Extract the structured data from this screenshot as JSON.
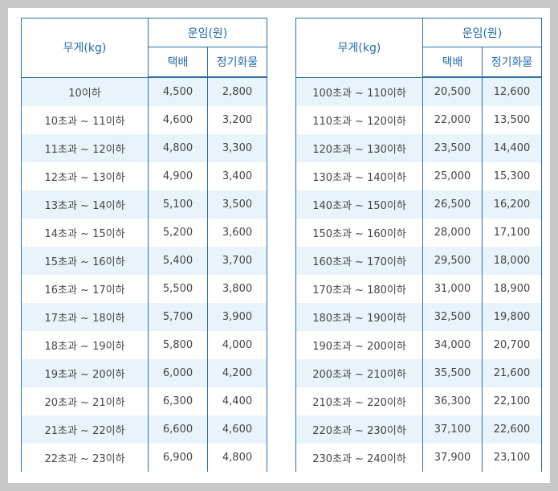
{
  "header": {
    "weight": "무게(kg)",
    "fare": "운임(원)",
    "courier": "택배",
    "regular": "정기화물"
  },
  "left_rows": [
    {
      "weight": "10이하",
      "courier": "4,500",
      "regular": "2,800"
    },
    {
      "weight": "10초과 ~ 11이하",
      "courier": "4,600",
      "regular": "3,200"
    },
    {
      "weight": "11초과 ~ 12이하",
      "courier": "4,800",
      "regular": "3,300"
    },
    {
      "weight": "12초과 ~ 13이하",
      "courier": "4,900",
      "regular": "3,400"
    },
    {
      "weight": "13초과 ~ 14이하",
      "courier": "5,100",
      "regular": "3,500"
    },
    {
      "weight": "14초과 ~ 15이하",
      "courier": "5,200",
      "regular": "3,600"
    },
    {
      "weight": "15초과 ~ 16이하",
      "courier": "5,400",
      "regular": "3,700"
    },
    {
      "weight": "16초과 ~ 17이하",
      "courier": "5,500",
      "regular": "3,800"
    },
    {
      "weight": "17초과 ~ 18이하",
      "courier": "5,700",
      "regular": "3,900"
    },
    {
      "weight": "18초과 ~ 19이하",
      "courier": "5,800",
      "regular": "4,000"
    },
    {
      "weight": "19초과 ~ 20이하",
      "courier": "6,000",
      "regular": "4,200"
    },
    {
      "weight": "20초과 ~ 21이하",
      "courier": "6,300",
      "regular": "4,400"
    },
    {
      "weight": "21초과 ~ 22이하",
      "courier": "6,600",
      "regular": "4,600"
    },
    {
      "weight": "22초과 ~ 23이하",
      "courier": "6,900",
      "regular": "4,800"
    }
  ],
  "right_rows": [
    {
      "weight": "100초과 ~ 110이하",
      "courier": "20,500",
      "regular": "12,600"
    },
    {
      "weight": "110초과 ~ 120이하",
      "courier": "22,000",
      "regular": "13,500"
    },
    {
      "weight": "120초과 ~ 130이하",
      "courier": "23,500",
      "regular": "14,400"
    },
    {
      "weight": "130초과 ~ 140이하",
      "courier": "25,000",
      "regular": "15,300"
    },
    {
      "weight": "140초과 ~ 150이하",
      "courier": "26,500",
      "regular": "16,200"
    },
    {
      "weight": "150초과 ~ 160이하",
      "courier": "28,000",
      "regular": "17,100"
    },
    {
      "weight": "160초과 ~ 170이하",
      "courier": "29,500",
      "regular": "18,000"
    },
    {
      "weight": "170초과 ~ 180이하",
      "courier": "31,000",
      "regular": "18,900"
    },
    {
      "weight": "180초과 ~ 190이하",
      "courier": "32,500",
      "regular": "19,800"
    },
    {
      "weight": "190초과 ~ 200이하",
      "courier": "34,000",
      "regular": "20,700"
    },
    {
      "weight": "200초과 ~ 210이하",
      "courier": "35,500",
      "regular": "21,600"
    },
    {
      "weight": "210초과 ~ 220이하",
      "courier": "36,300",
      "regular": "22,100"
    },
    {
      "weight": "220초과 ~ 230이하",
      "courier": "37,100",
      "regular": "22,600"
    },
    {
      "weight": "230초과 ~ 240이하",
      "courier": "37,900",
      "regular": "23,100"
    }
  ],
  "colors": {
    "border": "#2a6fa8",
    "header_text": "#1f6bb0",
    "row_alt": "#e9f4fa",
    "body_text": "#444444",
    "backdrop": "#c8c8c8"
  }
}
